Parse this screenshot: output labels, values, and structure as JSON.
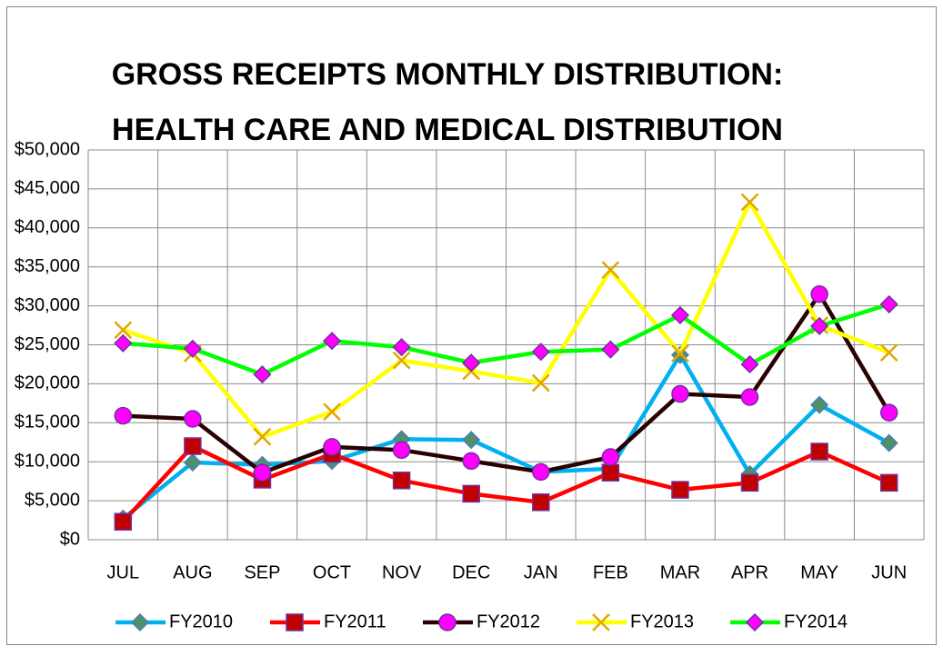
{
  "chart_data": {
    "type": "line",
    "title": [
      "GROSS RECEIPTS MONTHLY DISTRIBUTION:",
      "HEALTH CARE AND MEDICAL DISTRIBUTION"
    ],
    "categories": [
      "JUL",
      "AUG",
      "SEP",
      "OCT",
      "NOV",
      "DEC",
      "JAN",
      "FEB",
      "MAR",
      "APR",
      "MAY",
      "JUN"
    ],
    "series": [
      {
        "name": "FY2010",
        "color": "#00b0f0",
        "marker": "diamond",
        "marker_fill": "#4f8f6a",
        "marker_stroke": "#4a7ebb",
        "values": [
          2700,
          9900,
          9600,
          10100,
          12900,
          12800,
          8700,
          9100,
          23700,
          8400,
          17300,
          12400
        ]
      },
      {
        "name": "FY2011",
        "color": "#ff0000",
        "marker": "square",
        "marker_fill": "#c00000",
        "marker_stroke": "#7030a0",
        "values": [
          2300,
          12000,
          7700,
          11000,
          7600,
          5900,
          4800,
          8600,
          6400,
          7300,
          11300,
          7300
        ]
      },
      {
        "name": "FY2012",
        "color": "#2a0000",
        "marker": "circle",
        "marker_fill": "#ff00ff",
        "marker_stroke": "#7030a0",
        "values": [
          15900,
          15500,
          8600,
          11900,
          11500,
          10100,
          8700,
          10600,
          18700,
          18300,
          31500,
          16300
        ]
      },
      {
        "name": "FY2013",
        "color": "#ffff00",
        "marker": "x",
        "marker_fill": "none",
        "marker_stroke": "#e3a600",
        "values": [
          26900,
          23900,
          13200,
          16400,
          23000,
          21600,
          20100,
          34600,
          23900,
          43300,
          27500,
          24000
        ]
      },
      {
        "name": "FY2014",
        "color": "#00ff00",
        "marker": "diamond",
        "marker_fill": "#ff00ff",
        "marker_stroke": "#7030a0",
        "values": [
          25200,
          24500,
          21200,
          25500,
          24700,
          22700,
          24100,
          24400,
          28800,
          22500,
          27400,
          30200
        ]
      }
    ],
    "ylim": [
      0,
      50000
    ],
    "yticks": [
      {
        "value": 0,
        "label": "$0"
      },
      {
        "value": 5000,
        "label": "$5,000"
      },
      {
        "value": 10000,
        "label": "$10,000"
      },
      {
        "value": 15000,
        "label": "$15,000"
      },
      {
        "value": 20000,
        "label": "$20,000"
      },
      {
        "value": 25000,
        "label": "$25,000"
      },
      {
        "value": 30000,
        "label": "$30,000"
      },
      {
        "value": 35000,
        "label": "$35,000"
      },
      {
        "value": 40000,
        "label": "$40,000"
      },
      {
        "value": 45000,
        "label": "$45,000"
      },
      {
        "value": 50000,
        "label": "$50,000"
      }
    ],
    "grid": true,
    "legend": "bottom"
  }
}
